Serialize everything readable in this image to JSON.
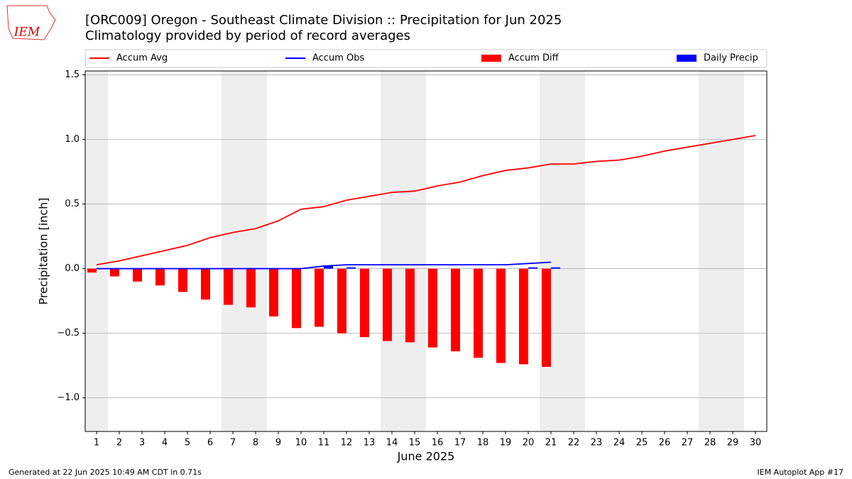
{
  "chart_data": {
    "type": "bar-line",
    "title": "[ORC009] Oregon - Southeast Climate Division :: Precipitation for Jun 2025",
    "subtitle": "Climatology provided by period of record averages",
    "logo_text": "IEM",
    "xlabel": "June 2025",
    "ylabel": "Precipitation [inch]",
    "footer_left": "Generated at 22 Jun 2025 10:49 AM CDT in 0.71s",
    "footer_right": "IEM Autoplot App #17",
    "x": [
      1,
      2,
      3,
      4,
      5,
      6,
      7,
      8,
      9,
      10,
      11,
      12,
      13,
      14,
      15,
      16,
      17,
      18,
      19,
      20,
      21,
      22,
      23,
      24,
      25,
      26,
      27,
      28,
      29,
      30
    ],
    "xlim": [
      0.5,
      30.5
    ],
    "xticks": [
      1,
      2,
      3,
      4,
      5,
      6,
      7,
      8,
      9,
      10,
      11,
      12,
      13,
      14,
      15,
      16,
      17,
      18,
      19,
      20,
      21,
      22,
      23,
      24,
      25,
      26,
      27,
      28,
      29,
      30
    ],
    "ylim": [
      -1.26,
      1.53
    ],
    "yticks": [
      {
        "value": -1.0,
        "label": "−1.0"
      },
      {
        "value": -0.5,
        "label": "−0.5"
      },
      {
        "value": 0.0,
        "label": "0.0"
      },
      {
        "value": 0.5,
        "label": "0.5"
      },
      {
        "value": 1.0,
        "label": "1.0"
      },
      {
        "value": 1.5,
        "label": "1.5"
      }
    ],
    "grid": true,
    "shaded_days": [
      1,
      7,
      8,
      14,
      15,
      21,
      22,
      28,
      29
    ],
    "shade_color": "#eeeeee",
    "series": [
      {
        "name": "Accum Avg",
        "kind": "line",
        "color": "#ff0000",
        "values": [
          0.03,
          0.06,
          0.1,
          0.14,
          0.18,
          0.24,
          0.28,
          0.31,
          0.37,
          0.46,
          0.48,
          0.53,
          0.56,
          0.59,
          0.6,
          0.64,
          0.67,
          0.72,
          0.76,
          0.78,
          0.81,
          0.81,
          0.83,
          0.84,
          0.87,
          0.91,
          0.94,
          0.97,
          1.0,
          1.03
        ]
      },
      {
        "name": "Accum Obs",
        "kind": "line",
        "color": "#0000ff",
        "values": [
          0,
          0,
          0,
          0,
          0,
          0,
          0,
          0,
          0,
          0,
          0.02,
          0.03,
          0.03,
          0.03,
          0.03,
          0.03,
          0.03,
          0.03,
          0.03,
          0.04,
          0.05,
          null,
          null,
          null,
          null,
          null,
          null,
          null,
          null,
          null
        ]
      },
      {
        "name": "Accum Diff",
        "kind": "bar",
        "color": "#ff0000",
        "values": [
          -0.03,
          -0.06,
          -0.1,
          -0.13,
          -0.18,
          -0.24,
          -0.28,
          -0.3,
          -0.37,
          -0.46,
          -0.45,
          -0.5,
          -0.53,
          -0.56,
          -0.57,
          -0.61,
          -0.64,
          -0.69,
          -0.73,
          -0.74,
          -0.76,
          null,
          null,
          null,
          null,
          null,
          null,
          null,
          null,
          null
        ]
      },
      {
        "name": "Daily Precip",
        "kind": "bar",
        "color": "#0000ff",
        "values": [
          0,
          0,
          0,
          0,
          0,
          0,
          0,
          0,
          0,
          0,
          0.02,
          0.01,
          0,
          0,
          0,
          0,
          0,
          0,
          0,
          0.01,
          0.01,
          null,
          null,
          null,
          null,
          null,
          null,
          null,
          null,
          null
        ]
      }
    ]
  }
}
